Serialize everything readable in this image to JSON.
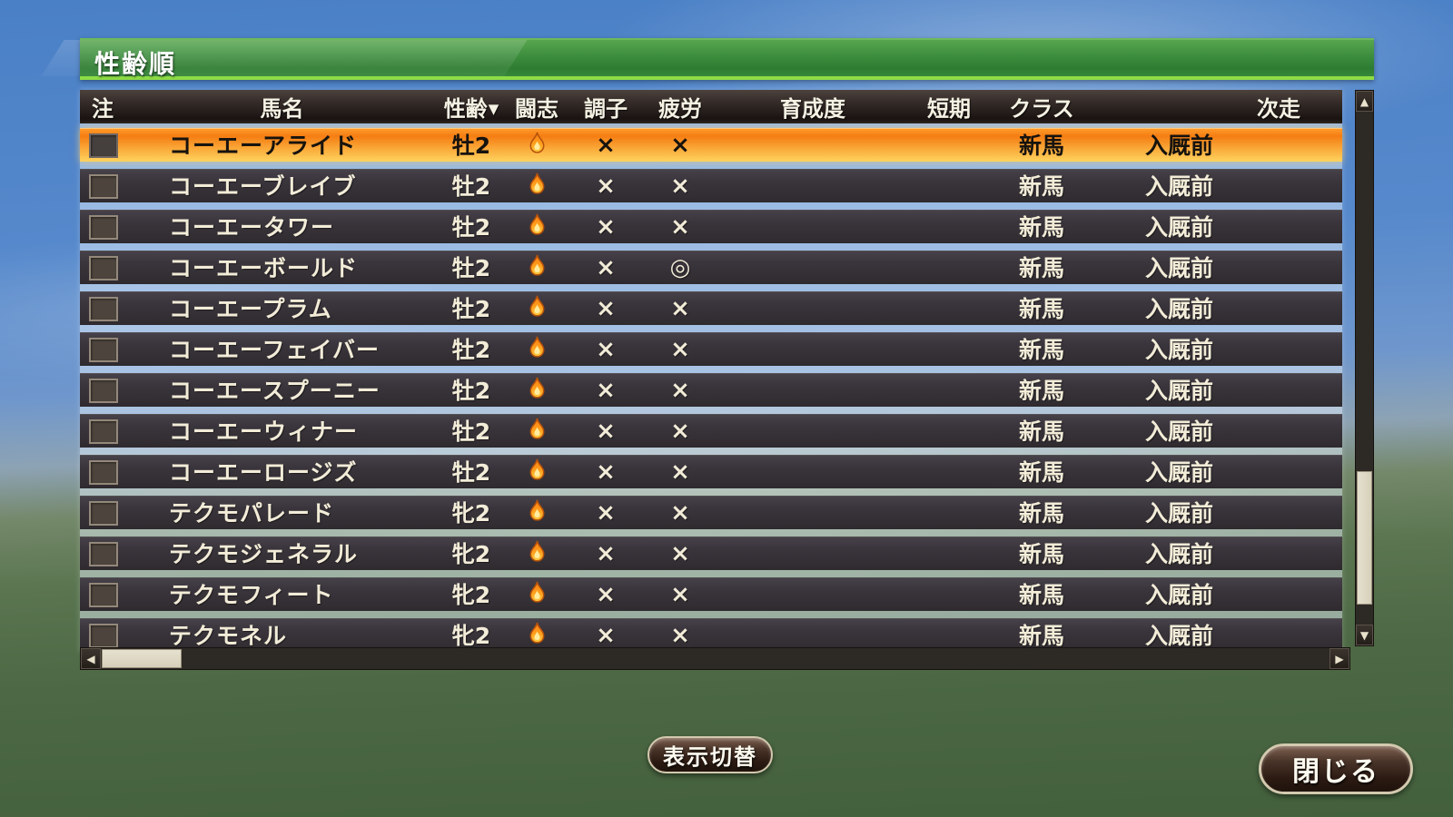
{
  "window": {
    "title": "性齢順"
  },
  "table": {
    "columns": [
      {
        "key": "note",
        "label": "注"
      },
      {
        "key": "name",
        "label": "馬名"
      },
      {
        "key": "sex_age",
        "label": "性齢",
        "sort_arrow": "▼"
      },
      {
        "key": "spirit",
        "label": "闘志"
      },
      {
        "key": "condition",
        "label": "調子"
      },
      {
        "key": "fatigue",
        "label": "疲労"
      },
      {
        "key": "growth",
        "label": "育成度"
      },
      {
        "key": "short_term",
        "label": "短期"
      },
      {
        "key": "class",
        "label": "クラス"
      },
      {
        "key": "next_race",
        "label": "次走"
      }
    ],
    "rows": [
      {
        "selected": true,
        "name": "コーエーアライド",
        "sex_age": "牡2",
        "spirit": "flame-icon",
        "condition": "×",
        "fatigue": "×",
        "growth": "",
        "short_term": "",
        "class": "新馬",
        "next_race": "入厩前"
      },
      {
        "selected": false,
        "name": "コーエーブレイブ",
        "sex_age": "牡2",
        "spirit": "flame-icon",
        "condition": "×",
        "fatigue": "×",
        "growth": "",
        "short_term": "",
        "class": "新馬",
        "next_race": "入厩前"
      },
      {
        "selected": false,
        "name": "コーエータワー",
        "sex_age": "牡2",
        "spirit": "flame-icon",
        "condition": "×",
        "fatigue": "×",
        "growth": "",
        "short_term": "",
        "class": "新馬",
        "next_race": "入厩前"
      },
      {
        "selected": false,
        "name": "コーエーボールド",
        "sex_age": "牡2",
        "spirit": "flame-icon",
        "condition": "×",
        "fatigue": "◎",
        "growth": "",
        "short_term": "",
        "class": "新馬",
        "next_race": "入厩前"
      },
      {
        "selected": false,
        "name": "コーエープラム",
        "sex_age": "牡2",
        "spirit": "flame-icon",
        "condition": "×",
        "fatigue": "×",
        "growth": "",
        "short_term": "",
        "class": "新馬",
        "next_race": "入厩前"
      },
      {
        "selected": false,
        "name": "コーエーフェイバー",
        "sex_age": "牡2",
        "spirit": "flame-icon",
        "condition": "×",
        "fatigue": "×",
        "growth": "",
        "short_term": "",
        "class": "新馬",
        "next_race": "入厩前"
      },
      {
        "selected": false,
        "name": "コーエースプーニー",
        "sex_age": "牡2",
        "spirit": "flame-icon",
        "condition": "×",
        "fatigue": "×",
        "growth": "",
        "short_term": "",
        "class": "新馬",
        "next_race": "入厩前"
      },
      {
        "selected": false,
        "name": "コーエーウィナー",
        "sex_age": "牡2",
        "spirit": "flame-icon",
        "condition": "×",
        "fatigue": "×",
        "growth": "",
        "short_term": "",
        "class": "新馬",
        "next_race": "入厩前"
      },
      {
        "selected": false,
        "name": "コーエーロージズ",
        "sex_age": "牡2",
        "spirit": "flame-icon",
        "condition": "×",
        "fatigue": "×",
        "growth": "",
        "short_term": "",
        "class": "新馬",
        "next_race": "入厩前"
      },
      {
        "selected": false,
        "name": "テクモパレード",
        "sex_age": "牝2",
        "spirit": "flame-icon",
        "condition": "×",
        "fatigue": "×",
        "growth": "",
        "short_term": "",
        "class": "新馬",
        "next_race": "入厩前"
      },
      {
        "selected": false,
        "name": "テクモジェネラル",
        "sex_age": "牝2",
        "spirit": "flame-icon",
        "condition": "×",
        "fatigue": "×",
        "growth": "",
        "short_term": "",
        "class": "新馬",
        "next_race": "入厩前"
      },
      {
        "selected": false,
        "name": "テクモフィート",
        "sex_age": "牝2",
        "spirit": "flame-icon",
        "condition": "×",
        "fatigue": "×",
        "growth": "",
        "short_term": "",
        "class": "新馬",
        "next_race": "入厩前"
      },
      {
        "selected": false,
        "name": "テクモネル",
        "sex_age": "牝2",
        "spirit": "flame-icon",
        "condition": "×",
        "fatigue": "×",
        "growth": "",
        "short_term": "",
        "class": "新馬",
        "next_race": "入厩前"
      }
    ]
  },
  "scrollbars": {
    "vertical": {
      "up_icon": "▲",
      "down_icon": "▼"
    },
    "horizontal": {
      "left_icon": "◀",
      "right_icon": "▶"
    }
  },
  "buttons": {
    "toggle_view_label": "表示切替",
    "close_label": "閉じる"
  },
  "colors": {
    "title_bar_green": "#3f9040",
    "title_underline_green": "#8edc46",
    "highlight_orange": "#f57d13",
    "row_dark": "#38333a",
    "header_dark": "#2a2220",
    "button_brown": "#3a2a20",
    "scroll_thumb": "#ded9c6"
  }
}
